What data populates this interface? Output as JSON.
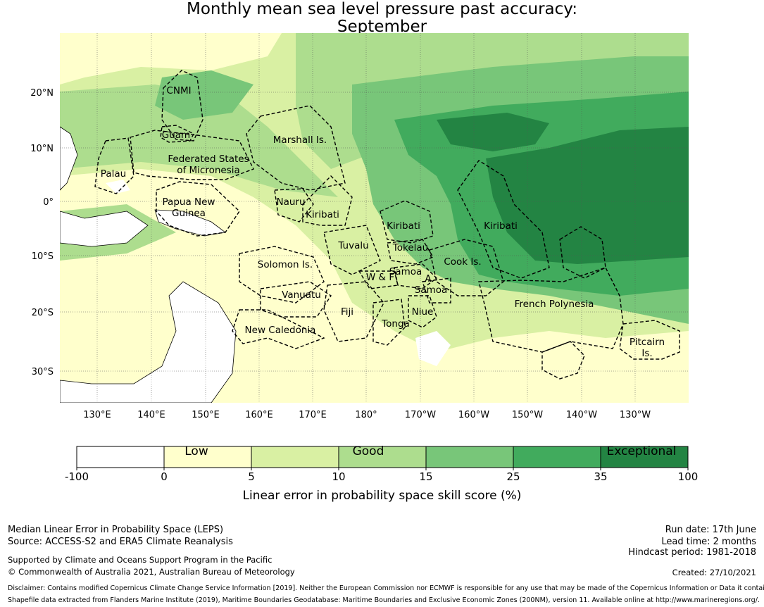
{
  "title": {
    "line1": "Monthly mean sea level pressure past accuracy:",
    "line2": "September"
  },
  "map": {
    "lat_ticks": [
      "20°N",
      "10°N",
      "0°",
      "10°S",
      "20°S",
      "30°S"
    ],
    "lon_ticks": [
      "130°E",
      "140°E",
      "150°E",
      "160°E",
      "170°E",
      "180°",
      "170°W",
      "160°W",
      "150°W",
      "140°W",
      "130°W"
    ],
    "regions": [
      "CNMI",
      "Guam",
      "Marshall Is.",
      "Federated States",
      "of Micronesia",
      "Palau",
      "Papua New",
      "Guinea",
      "Nauru",
      "Kiribati",
      "Kiribati",
      "Kiribati",
      "Tuvalu",
      "Tokelau",
      "Solomon Is.",
      "Samoa",
      "W & F",
      "A.",
      "Samoa",
      "Cook Is.",
      "Vanuatu",
      "Fiji",
      "Niue",
      "Tonga",
      "French Polynesia",
      "New Caledonia",
      "Pitcairn",
      "Is."
    ],
    "colors": {
      "ocean_low": "#ffffcc",
      "ocean_mod": "#d9f0a3",
      "ocean_good": "#addd8e",
      "ocean_vgood": "#78c679",
      "ocean_high": "#41ab5d",
      "ocean_exc": "#238443"
    }
  },
  "colorbar": {
    "ticks": [
      "-100",
      "0",
      "5",
      "10",
      "15",
      "25",
      "35",
      "100"
    ],
    "categories": [
      "Low",
      "Good",
      "Exceptional"
    ],
    "colors": [
      "#ffffff",
      "#ffffcc",
      "#d9f0a3",
      "#addd8e",
      "#78c679",
      "#41ab5d",
      "#238443"
    ],
    "label": "Linear error in probability space skill score (%)"
  },
  "footer": {
    "left1": "Median Linear Error in Probability Space (LEPS)",
    "left2": "Source: ACCESS-S2 and ERA5 Climate Reanalysis",
    "left3": "Supported by Climate and Oceans Support Program in the Pacific",
    "left4": "© Commonwealth of Australia 2021, Australian Bureau of Meteorology",
    "right1": "Run date: 17th June",
    "right2": "Lead time: 2 months",
    "right3": "Hindcast period: 1981-2018",
    "right4": "Created: 27/10/2021",
    "disclaimer": "Disclaimer: Contains modified Copernicus Climate Change Service Information [2019]. Neither the European Commission nor ECMWF is responsible for any use that may be made of the Copernicus Information or Data it contains.",
    "shapefile": "Shapefile data extracted from Flanders Marine Institute (2019), Maritime Boundaries Geodatabase: Maritime Boundaries and Exclusive Economic Zones (200NM), version 11. Available online at http://www.marineregions.org/."
  }
}
